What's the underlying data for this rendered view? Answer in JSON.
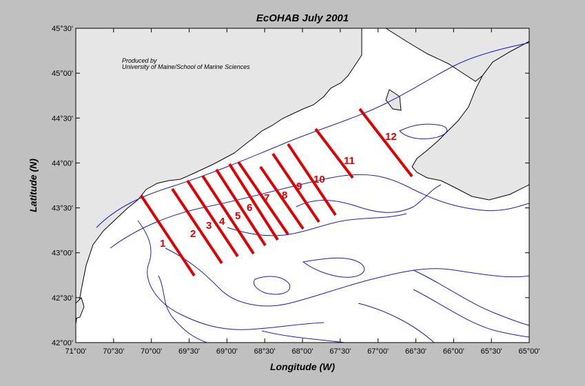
{
  "title": "EcOHAB   July 2001",
  "credit": {
    "line1": "Produced by",
    "line2": "University of Maine/School of Marine Sciences"
  },
  "x_axis": {
    "label": "Longitude (W)",
    "ticks": [
      "71°00'",
      "70°30'",
      "70°00'",
      "69°30'",
      "69°00'",
      "68°30'",
      "68°00'",
      "67°30'",
      "67°00'",
      "66°30'",
      "66°00'",
      "65°30'",
      "65°00'"
    ]
  },
  "y_axis": {
    "label": "Latitude (N)",
    "ticks": [
      "45°30'",
      "45°00'",
      "44°30'",
      "44°00'",
      "43°30'",
      "43°00'",
      "42°30'",
      "42°00'"
    ]
  },
  "transects": [
    {
      "label": "1"
    },
    {
      "label": "2"
    },
    {
      "label": "3"
    },
    {
      "label": "4"
    },
    {
      "label": "5"
    },
    {
      "label": "6"
    },
    {
      "label": "7"
    },
    {
      "label": "8"
    },
    {
      "label": "9"
    },
    {
      "label": "10"
    },
    {
      "label": "11"
    },
    {
      "label": "12"
    }
  ],
  "colors": {
    "background": "#c0c0c0",
    "land": "#e6e6e6",
    "sea": "#ffffff",
    "coastline": "#000000",
    "isobath": "#1a1acc",
    "transect": "#e00000"
  }
}
